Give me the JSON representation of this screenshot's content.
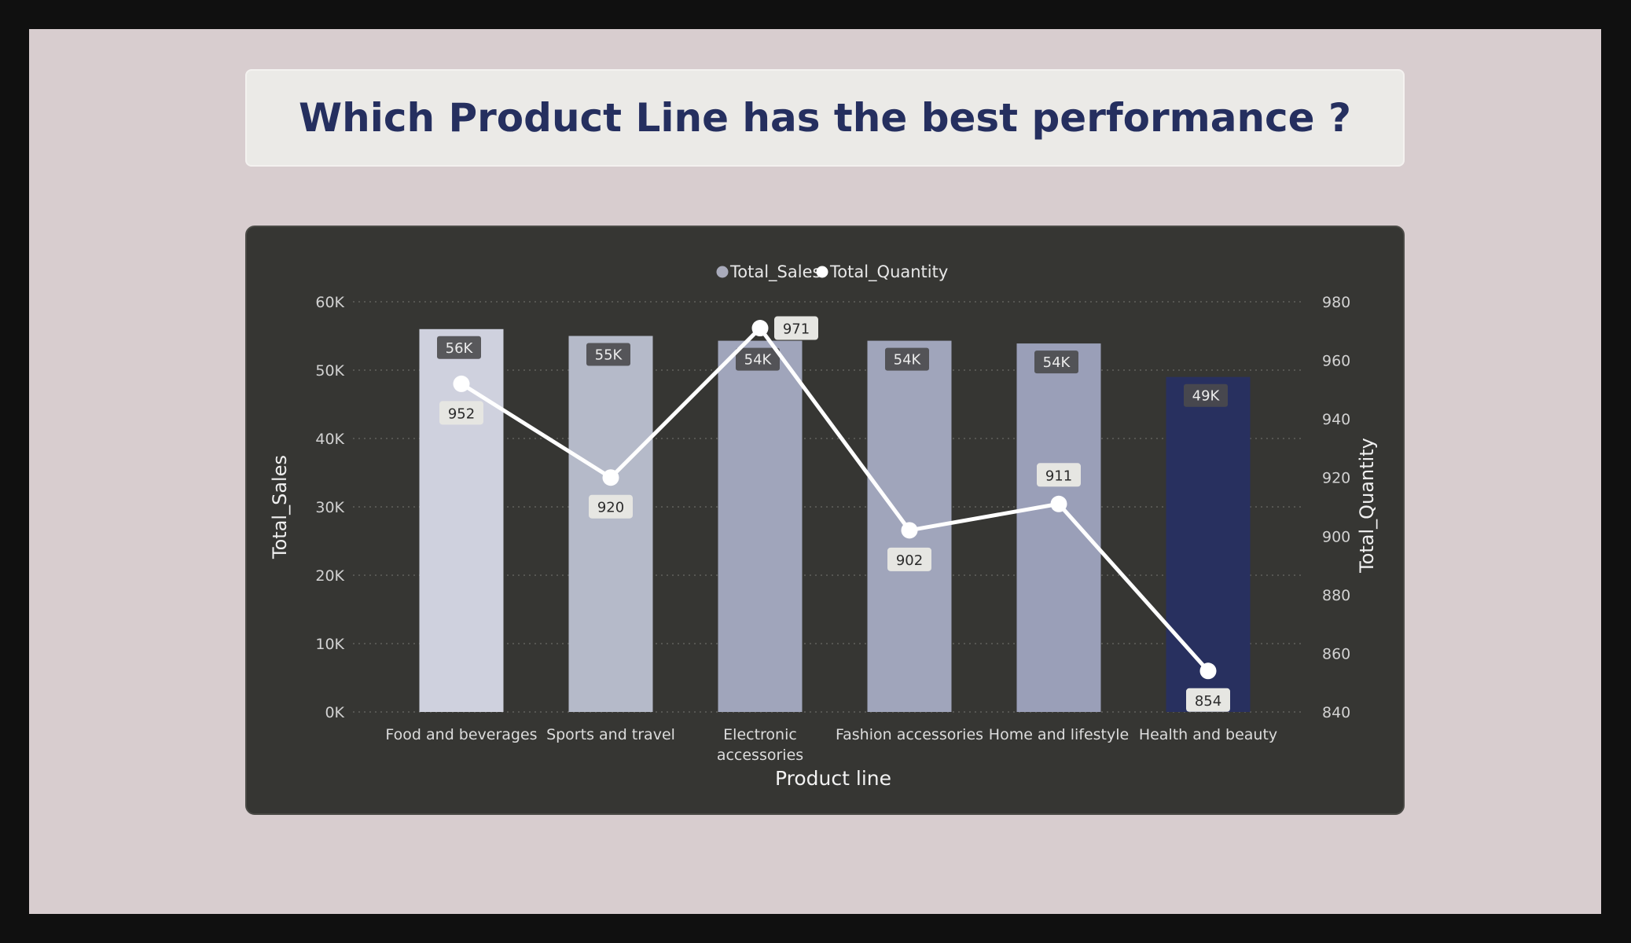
{
  "page": {
    "title": "Which Product Line has the best performance ?"
  },
  "colors": {
    "background": "#d8cdcf",
    "title_text": "#252f5f",
    "chart_panel": "#363633",
    "bar_light": "#cfd1de",
    "bar_highlight": "#28305f",
    "line": "#ffffff"
  },
  "chart_data": {
    "type": "bar",
    "combo": "bar-with-line",
    "categories": [
      "Food and beverages",
      "Sports and travel",
      "Electronic accessories",
      "Fashion accessories",
      "Home and lifestyle",
      "Health and beauty"
    ],
    "series": [
      {
        "name": "Total_Sales",
        "type": "bar",
        "axis": "left",
        "values": [
          56000,
          55000,
          54300,
          54300,
          53900,
          49000
        ],
        "data_labels": [
          "56K",
          "55K",
          "54K",
          "54K",
          "54K",
          "49K"
        ],
        "bar_colors": [
          "#cfd1de",
          "#b5bac9",
          "#a0a5bb",
          "#a0a5bb",
          "#9a9fb8",
          "#28305f"
        ],
        "legend_color": "#a9abbb"
      },
      {
        "name": "Total_Quantity",
        "type": "line",
        "axis": "right",
        "values": [
          952,
          920,
          971,
          902,
          911,
          854
        ],
        "data_labels": [
          "952",
          "920",
          "971",
          "902",
          "911",
          "854"
        ],
        "legend_color": "#ffffff"
      }
    ],
    "xlabel": "Product line",
    "ylabel": "Total_Sales",
    "ylabel_right": "Total_Quantity",
    "ylim": [
      0,
      60000
    ],
    "ylim_right": [
      840,
      980
    ],
    "yticks": [
      0,
      10000,
      20000,
      30000,
      40000,
      50000,
      60000
    ],
    "ytick_labels": [
      "0K",
      "10K",
      "20K",
      "30K",
      "40K",
      "50K",
      "60K"
    ],
    "yticks_right": [
      840,
      860,
      880,
      900,
      920,
      940,
      960,
      980
    ],
    "ytick_labels_right": [
      "840",
      "860",
      "880",
      "900",
      "920",
      "940",
      "960",
      "980"
    ],
    "grid": true,
    "legend_position": "top-center"
  }
}
